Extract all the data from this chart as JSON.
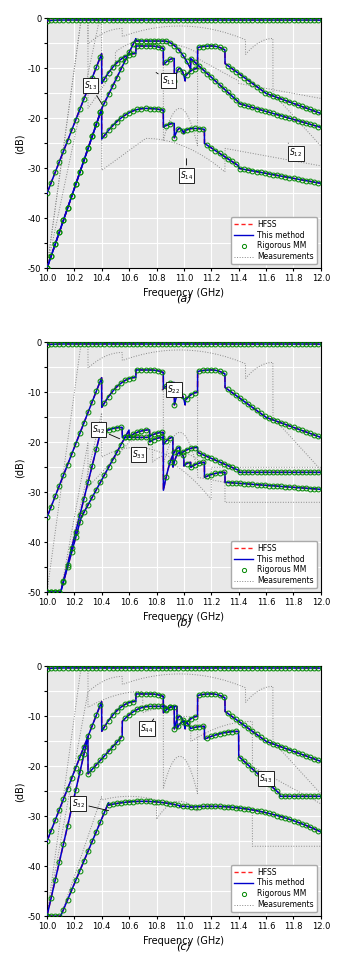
{
  "freq_start": 10.0,
  "freq_end": 12.0,
  "ylim_a": [
    -50,
    0
  ],
  "ylim_b": [
    -50,
    0
  ],
  "ylim_c": [
    -50,
    0
  ],
  "yticks": [
    0,
    -5,
    -10,
    -15,
    -20,
    -25,
    -30,
    -35,
    -40,
    -45,
    -50
  ],
  "xticks": [
    10.0,
    10.2,
    10.4,
    10.6,
    10.8,
    11.0,
    11.2,
    11.4,
    11.6,
    11.8,
    12.0
  ],
  "xlabel": "Frequency (GHz)",
  "ylabel": "(dB)",
  "subplot_labels": [
    "(a)",
    "(b)",
    "(c)"
  ],
  "legend_entries": [
    "HFSS",
    "This method",
    "Rigorous MM",
    "Measurements"
  ],
  "bg_color": "#e8e8e8",
  "grid_color": "#ffffff",
  "col_blue": "#0000cc",
  "col_red": "#ff2020",
  "col_green": "#008800",
  "col_meas": "#888888",
  "col_magenta": "#cc00cc"
}
